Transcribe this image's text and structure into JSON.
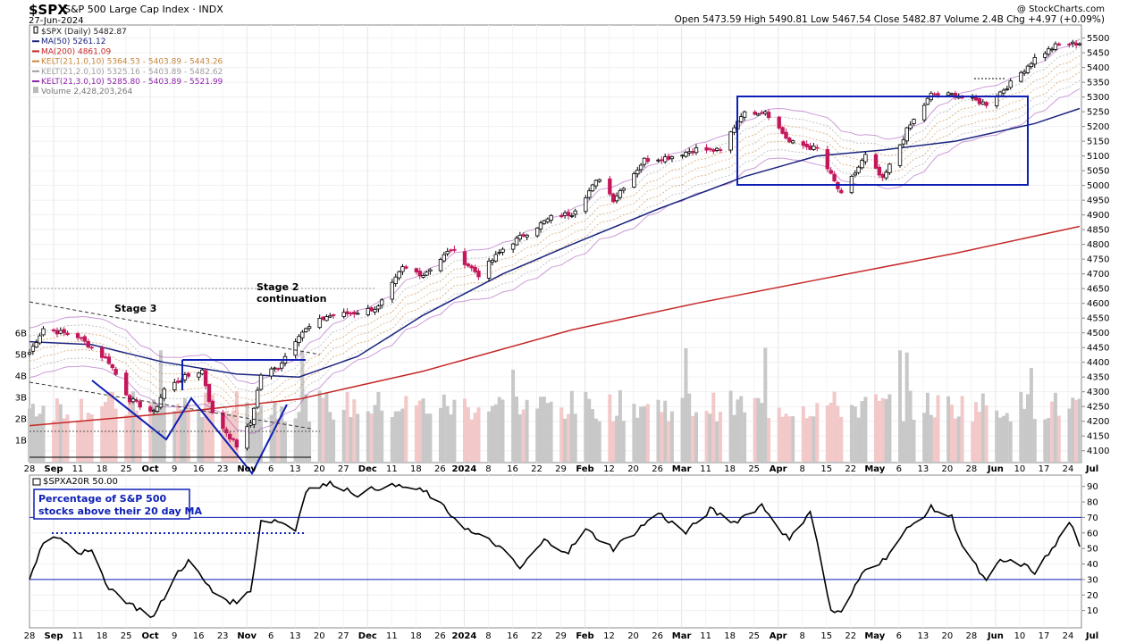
{
  "header": {
    "symbol": "$SPX",
    "name": "S&P 500 Large Cap Index",
    "exchange": "INDX",
    "date": "27-Jun-2024",
    "watermark": "@ StockCharts.com",
    "quote": "Open 5473.59  High 5490.81  Low 5467.54  Close 5482.87  Volume 2.4B  Chg +4.97 (+0.09%)"
  },
  "legend": [
    {
      "text": "$SPX (Daily) 5482.87",
      "color": "#222222",
      "icon": "candle-icon"
    },
    {
      "text": "MA(50) 5261.12",
      "color": "#1a237e",
      "icon": "line-icon"
    },
    {
      "text": "MA(200) 4861.09",
      "color": "#c62828",
      "icon": "line-icon"
    },
    {
      "text": "KELT(21,1.0,10) 5364.53 - 5403.89 - 5443.26",
      "color": "#c8863c",
      "icon": "line-icon"
    },
    {
      "text": "KELT(21,2.0,10) 5325.16 - 5403.89 - 5482.62",
      "color": "#9e9e9e",
      "icon": "line-icon"
    },
    {
      "text": "KELT(21,3.0,10) 5285.80 - 5403.89 - 5521.99",
      "color": "#8e24aa",
      "icon": "line-icon"
    },
    {
      "text": "Volume 2,428,203,264",
      "color": "#777777",
      "icon": "bar-icon"
    }
  ],
  "annotations": {
    "stage3": "Stage 3",
    "stage2_line1": "Stage 2",
    "stage2_line2": "continuation",
    "pct_line1": "Percentage of S&P 500",
    "pct_line2": "stocks above their 20 day MA"
  },
  "lower_panel": {
    "label": "$SPXA20R 50.00"
  },
  "colors": {
    "up_candle": "#000000",
    "down_candle": "#c2185b",
    "ma50": "#1a237e",
    "ma200": "#c62828",
    "kelt3": "#8e24aa",
    "annotation_blue": "#0d1fb5",
    "volume_up": "#c8c8c8",
    "volume_down": "#f2c8c8"
  },
  "chart_data": [
    {
      "type": "candlestick",
      "title": "$SPX S&P 500 Large Cap Index INDX",
      "y_axis_side": "right",
      "ylim": [
        4090,
        5520
      ],
      "y_ticks": [
        4100,
        4150,
        4200,
        4250,
        4300,
        4350,
        4400,
        4450,
        4500,
        4550,
        4600,
        4650,
        4700,
        4750,
        4800,
        4850,
        4900,
        4950,
        5000,
        5050,
        5100,
        5150,
        5200,
        5250,
        5300,
        5350,
        5400,
        5450,
        5500
      ],
      "x_ticks": [
        "28",
        "Sep",
        "11",
        "18",
        "25",
        "Oct",
        "9",
        "16",
        "23",
        "Nov",
        "6",
        "13",
        "20",
        "27",
        "Dec",
        "11",
        "18",
        "26",
        "2024",
        "8",
        "16",
        "22",
        "29",
        "Feb",
        "12",
        "20",
        "26",
        "Mar",
        "11",
        "18",
        "25",
        "Apr",
        "8",
        "15",
        "22",
        "May",
        "6",
        "13",
        "20",
        "28",
        "Jun",
        "10",
        "17",
        "24",
        "Jul"
      ],
      "volume_ticks": [
        "6B",
        "5B",
        "4B",
        "3B",
        "2B",
        "1B"
      ],
      "close_path": [
        [
          "2023-08-28",
          4433
        ],
        [
          "2023-09-01",
          4515
        ],
        [
          "2023-09-11",
          4487
        ],
        [
          "2023-09-15",
          4450
        ],
        [
          "2023-09-20",
          4402
        ],
        [
          "2023-09-26",
          4274
        ],
        [
          "2023-10-03",
          4229
        ],
        [
          "2023-10-06",
          4308
        ],
        [
          "2023-10-12",
          4349
        ],
        [
          "2023-10-17",
          4373
        ],
        [
          "2023-10-20",
          4224
        ],
        [
          "2023-10-27",
          4117
        ],
        [
          "2023-10-31",
          4194
        ],
        [
          "2023-11-03",
          4358
        ],
        [
          "2023-11-08",
          4383
        ],
        [
          "2023-11-14",
          4496
        ],
        [
          "2023-11-22",
          4556
        ],
        [
          "2023-11-30",
          4568
        ],
        [
          "2023-12-07",
          4586
        ],
        [
          "2023-12-14",
          4720
        ],
        [
          "2023-12-20",
          4698
        ],
        [
          "2023-12-28",
          4783
        ],
        [
          "2024-01-05",
          4697
        ],
        [
          "2024-01-12",
          4784
        ],
        [
          "2024-01-19",
          4840
        ],
        [
          "2024-01-26",
          4891
        ],
        [
          "2024-02-01",
          4906
        ],
        [
          "2024-02-09",
          5026
        ],
        [
          "2024-02-13",
          4953
        ],
        [
          "2024-02-22",
          5087
        ],
        [
          "2024-02-29",
          5096
        ],
        [
          "2024-03-08",
          5123
        ],
        [
          "2024-03-15",
          5117
        ],
        [
          "2024-03-21",
          5241
        ],
        [
          "2024-03-28",
          5254
        ],
        [
          "2024-04-04",
          5147
        ],
        [
          "2024-04-12",
          5123
        ],
        [
          "2024-04-19",
          4967
        ],
        [
          "2024-04-26",
          5100
        ],
        [
          "2024-05-01",
          5018
        ],
        [
          "2024-05-08",
          5187
        ],
        [
          "2024-05-15",
          5308
        ],
        [
          "2024-05-22",
          5307
        ],
        [
          "2024-05-31",
          5277
        ],
        [
          "2024-06-07",
          5346
        ],
        [
          "2024-06-14",
          5431
        ],
        [
          "2024-06-20",
          5473
        ],
        [
          "2024-06-27",
          5483
        ]
      ],
      "ma50_path": [
        [
          "2023-08-28",
          4470
        ],
        [
          "2023-09-15",
          4460
        ],
        [
          "2023-10-06",
          4400
        ],
        [
          "2023-10-27",
          4360
        ],
        [
          "2023-11-14",
          4350
        ],
        [
          "2023-12-01",
          4420
        ],
        [
          "2023-12-20",
          4560
        ],
        [
          "2024-01-12",
          4700
        ],
        [
          "2024-02-01",
          4800
        ],
        [
          "2024-02-26",
          4920
        ],
        [
          "2024-03-22",
          5030
        ],
        [
          "2024-04-12",
          5100
        ],
        [
          "2024-05-01",
          5120
        ],
        [
          "2024-05-22",
          5150
        ],
        [
          "2024-06-14",
          5210
        ],
        [
          "2024-06-27",
          5261
        ]
      ],
      "ma200_path": [
        [
          "2023-08-28",
          4185
        ],
        [
          "2023-10-06",
          4225
        ],
        [
          "2023-11-14",
          4275
        ],
        [
          "2023-12-20",
          4370
        ],
        [
          "2024-02-01",
          4510
        ],
        [
          "2024-03-08",
          4600
        ],
        [
          "2024-04-12",
          4680
        ],
        [
          "2024-05-22",
          4770
        ],
        [
          "2024-06-27",
          4861
        ]
      ]
    },
    {
      "type": "line",
      "title": "$SPXA20R 50.00",
      "ylim": [
        0,
        95
      ],
      "y_ticks": [
        10,
        20,
        30,
        40,
        50,
        60,
        70,
        80,
        90
      ],
      "reference_lines": [
        70,
        30
      ],
      "values": [
        [
          "2023-08-28",
          30
        ],
        [
          "2023-09-01",
          55
        ],
        [
          "2023-09-06",
          58
        ],
        [
          "2023-09-11",
          48
        ],
        [
          "2023-09-15",
          47
        ],
        [
          "2023-09-20",
          25
        ],
        [
          "2023-09-27",
          13
        ],
        [
          "2023-10-03",
          6
        ],
        [
          "2023-10-10",
          35
        ],
        [
          "2023-10-13",
          42
        ],
        [
          "2023-10-20",
          22
        ],
        [
          "2023-10-26",
          15
        ],
        [
          "2023-10-31",
          22
        ],
        [
          "2023-11-03",
          68
        ],
        [
          "2023-11-08",
          68
        ],
        [
          "2023-11-13",
          62
        ],
        [
          "2023-11-16",
          88
        ],
        [
          "2023-11-24",
          92
        ],
        [
          "2023-12-01",
          85
        ],
        [
          "2023-12-08",
          90
        ],
        [
          "2023-12-14",
          90
        ],
        [
          "2023-12-21",
          86
        ],
        [
          "2024-01-03",
          60
        ],
        [
          "2024-01-10",
          53
        ],
        [
          "2024-01-17",
          37
        ],
        [
          "2024-01-24",
          55
        ],
        [
          "2024-01-31",
          48
        ],
        [
          "2024-02-05",
          62
        ],
        [
          "2024-02-13",
          50
        ],
        [
          "2024-02-20",
          62
        ],
        [
          "2024-02-26",
          73
        ],
        [
          "2024-03-05",
          60
        ],
        [
          "2024-03-12",
          75
        ],
        [
          "2024-03-19",
          67
        ],
        [
          "2024-03-27",
          78
        ],
        [
          "2024-04-04",
          55
        ],
        [
          "2024-04-10",
          75
        ],
        [
          "2024-04-16",
          10
        ],
        [
          "2024-04-19",
          8
        ],
        [
          "2024-04-26",
          38
        ],
        [
          "2024-05-01",
          42
        ],
        [
          "2024-05-08",
          62
        ],
        [
          "2024-05-15",
          76
        ],
        [
          "2024-05-21",
          70
        ],
        [
          "2024-05-24",
          52
        ],
        [
          "2024-05-31",
          28
        ],
        [
          "2024-06-04",
          42
        ],
        [
          "2024-06-10",
          40
        ],
        [
          "2024-06-14",
          35
        ],
        [
          "2024-06-20",
          52
        ],
        [
          "2024-06-24",
          68
        ],
        [
          "2024-06-27",
          50
        ]
      ]
    }
  ]
}
